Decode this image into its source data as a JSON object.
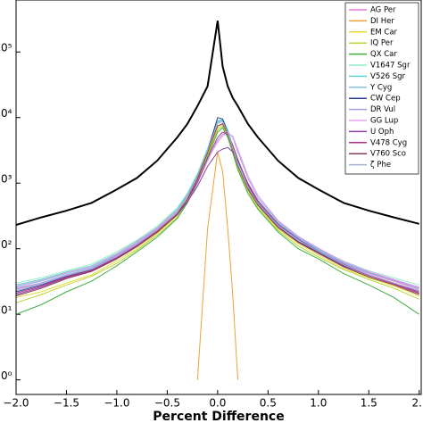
{
  "chart_data": {
    "type": "line",
    "xlabel": "Percent Difference",
    "xlim": [
      -2,
      2.02
    ],
    "ylim": [
      0.6,
      620000
    ],
    "log_y": true,
    "legend": "upper right",
    "xticks": [
      {
        "value": -2,
        "label": "−2.0"
      },
      {
        "value": -1.5,
        "label": "−1.5"
      },
      {
        "value": -1,
        "label": "−1.0"
      },
      {
        "value": -0.5,
        "label": "−0.5"
      },
      {
        "value": 0,
        "label": "0.0"
      },
      {
        "value": 0.5,
        "label": "0.5"
      },
      {
        "value": 1,
        "label": "1.0"
      },
      {
        "value": 1.5,
        "label": "1.5"
      },
      {
        "value": 2,
        "label": "2."
      }
    ],
    "yticks": [
      {
        "value": 1,
        "label": "0⁰"
      },
      {
        "value": 10,
        "label": "0¹"
      },
      {
        "value": 100,
        "label": "0²"
      },
      {
        "value": 1000,
        "label": "0³"
      },
      {
        "value": 10000,
        "label": "0⁴"
      },
      {
        "value": 100000,
        "label": "0⁵"
      }
    ],
    "x": [
      -2,
      -1.75,
      -1.5,
      -1.25,
      -1,
      -0.8,
      -0.6,
      -0.4,
      -0.3,
      -0.2,
      -0.1,
      0,
      0.05,
      0.1,
      0.15,
      0.2,
      0.3,
      0.4,
      0.6,
      0.8,
      1,
      1.25,
      1.5,
      1.75,
      2
    ],
    "series": [
      {
        "name": "AG Per",
        "color": "#e57ad0",
        "values": [
          25,
          30,
          40,
          50,
          80,
          120,
          200,
          380,
          650,
          1300,
          3200,
          8500,
          9000,
          6000,
          3500,
          2000,
          900,
          500,
          230,
          140,
          95,
          60,
          42,
          32,
          24
        ]
      },
      {
        "name": "DI Her",
        "color": "#f0a030",
        "values": [
          null,
          null,
          null,
          null,
          null,
          null,
          null,
          null,
          null,
          1,
          200,
          3000,
          1500,
          200,
          20,
          1,
          null,
          null,
          null,
          null,
          null,
          null,
          null,
          null,
          null
        ]
      },
      {
        "name": "EM Car",
        "color": "#e5dc3a",
        "values": [
          18,
          22,
          30,
          40,
          65,
          100,
          170,
          320,
          550,
          1100,
          2800,
          7000,
          8000,
          5500,
          3200,
          1800,
          800,
          450,
          200,
          120,
          80,
          50,
          36,
          27,
          19
        ]
      },
      {
        "name": "IQ Per",
        "color": "#b8d63a",
        "values": [
          15,
          20,
          28,
          38,
          60,
          95,
          160,
          300,
          520,
          1000,
          2600,
          6500,
          7500,
          5200,
          3000,
          1700,
          760,
          420,
          190,
          110,
          75,
          48,
          34,
          25,
          17
        ]
      },
      {
        "name": "QX Car",
        "color": "#3fae3f",
        "values": [
          10,
          14,
          22,
          32,
          55,
          90,
          150,
          290,
          500,
          1000,
          2500,
          6000,
          7000,
          5000,
          2900,
          1600,
          700,
          400,
          180,
          100,
          70,
          42,
          28,
          18,
          10
        ]
      },
      {
        "name": "V1647 Sgr",
        "color": "#90eec0",
        "values": [
          30,
          36,
          46,
          58,
          90,
          135,
          220,
          420,
          700,
          1400,
          3400,
          9000,
          9500,
          6500,
          3800,
          2200,
          1000,
          550,
          250,
          150,
          100,
          65,
          46,
          36,
          28
        ]
      },
      {
        "name": "V526 Sgr",
        "color": "#5ed4d0",
        "values": [
          28,
          34,
          44,
          55,
          85,
          130,
          210,
          400,
          680,
          1350,
          3300,
          8800,
          9200,
          6300,
          3700,
          2100,
          950,
          520,
          240,
          145,
          98,
          62,
          44,
          34,
          26
        ]
      },
      {
        "name": "Y Cyg",
        "color": "#80c4ea",
        "values": [
          26,
          32,
          42,
          52,
          82,
          125,
          205,
          390,
          660,
          1300,
          3200,
          8500,
          9000,
          6100,
          3600,
          2050,
          920,
          510,
          235,
          140,
          95,
          60,
          43,
          33,
          25
        ]
      },
      {
        "name": "CW Cep",
        "color": "#2c3c9c",
        "values": [
          22,
          28,
          38,
          48,
          75,
          115,
          190,
          360,
          620,
          1250,
          3100,
          10000,
          9500,
          6000,
          3400,
          1900,
          850,
          470,
          215,
          128,
          88,
          55,
          39,
          29,
          21
        ]
      },
      {
        "name": "DR Vul",
        "color": "#a89de2",
        "values": [
          24,
          30,
          40,
          50,
          78,
          118,
          195,
          350,
          560,
          1000,
          2200,
          4500,
          5500,
          6000,
          5000,
          3000,
          1200,
          600,
          260,
          150,
          100,
          62,
          44,
          33,
          25
        ]
      },
      {
        "name": "GG Lup",
        "color": "#e2a2ea",
        "values": [
          27,
          33,
          43,
          54,
          84,
          128,
          208,
          380,
          600,
          1050,
          2300,
          4200,
          5200,
          5800,
          5200,
          3300,
          1300,
          650,
          270,
          155,
          102,
          64,
          45,
          34,
          26
        ]
      },
      {
        "name": "U Oph",
        "color": "#8a40a2",
        "values": [
          20,
          26,
          36,
          46,
          72,
          110,
          180,
          330,
          520,
          900,
          1800,
          3000,
          3300,
          3500,
          3000,
          2200,
          1000,
          540,
          240,
          140,
          92,
          58,
          40,
          30,
          22
        ]
      },
      {
        "name": "V478 Cyg",
        "color": "#b2308c",
        "values": [
          21,
          27,
          37,
          47,
          74,
          112,
          185,
          340,
          560,
          1050,
          2400,
          5000,
          6000,
          5500,
          3800,
          2300,
          950,
          500,
          225,
          132,
          90,
          56,
          39,
          29,
          21
        ]
      },
      {
        "name": "V760 Sco",
        "color": "#8c3c4c",
        "values": [
          19,
          25,
          35,
          45,
          70,
          108,
          178,
          335,
          570,
          1150,
          2900,
          7500,
          8000,
          5600,
          3300,
          1850,
          820,
          460,
          210,
          125,
          85,
          53,
          37,
          28,
          20
        ]
      },
      {
        "name": "ζ Phe",
        "color": "#a2b2ca",
        "values": [
          23,
          29,
          39,
          49,
          76,
          116,
          192,
          365,
          630,
          1280,
          3150,
          8200,
          8600,
          5900,
          3450,
          1950,
          870,
          485,
          222,
          133,
          91,
          57,
          40,
          30,
          23
        ]
      },
      {
        "color": "#000000",
        "values": [
          230,
          300,
          380,
          500,
          800,
          1200,
          2200,
          5000,
          8000,
          15000,
          30000,
          300000,
          60000,
          30000,
          20000,
          15000,
          8000,
          5000,
          2200,
          1200,
          800,
          500,
          380,
          300,
          240
        ]
      }
    ]
  }
}
